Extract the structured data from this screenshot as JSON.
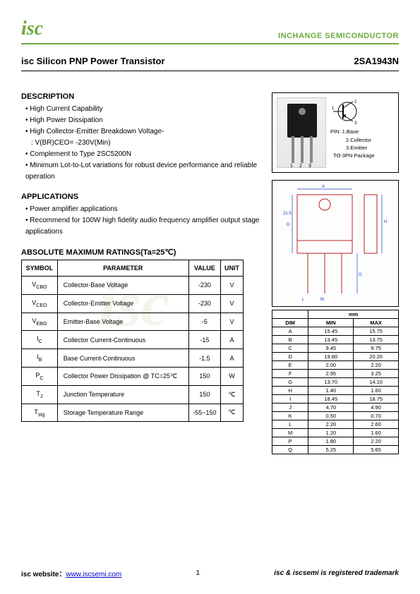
{
  "header": {
    "logo": "isc",
    "brand": "INCHANGE SEMICONDUCTOR",
    "brand_color": "#6daa3e"
  },
  "title": {
    "left": "isc Silicon PNP Power Transistor",
    "right": "2SA1943N"
  },
  "description": {
    "heading": "DESCRIPTION",
    "items": [
      "High Current Capability",
      "High Power Dissipation",
      "High Collector-Emitter Breakdown Voltage-",
      "Complement to Type 2SC5200N",
      "Minimum Lot-to-Lot variations for robust device performance and reliable operation"
    ],
    "breakdown_sub": ": V(BR)CEO= -230V(Min)"
  },
  "applications": {
    "heading": "APPLICATIONS",
    "items": [
      "Power amplifier applications",
      "Recommend for 100W high fidelity audio frequency amplifier output stage applications"
    ]
  },
  "ratings": {
    "heading": "ABSOLUTE MAXIMUM RATINGS(Ta=25℃)",
    "columns": [
      "SYMBOL",
      "PARAMETER",
      "VALUE",
      "UNIT"
    ],
    "rows": [
      {
        "sym": "V",
        "sub": "CBO",
        "param": "Collector-Base Voltage",
        "value": "-230",
        "unit": "V"
      },
      {
        "sym": "V",
        "sub": "CEO",
        "param": "Collector-Emitter Voltage",
        "value": "-230",
        "unit": "V"
      },
      {
        "sym": "V",
        "sub": "EBO",
        "param": "Emitter-Base Voltage",
        "value": "-5",
        "unit": "V"
      },
      {
        "sym": "I",
        "sub": "C",
        "param": "Collector Current-Continuous",
        "value": "-15",
        "unit": "A"
      },
      {
        "sym": "I",
        "sub": "B",
        "param": "Base Current-Continuous",
        "value": "-1.5",
        "unit": "A"
      },
      {
        "sym": "P",
        "sub": "C",
        "param": "Collector Power Dissipation @ TC=25℃",
        "value": "150",
        "unit": "W"
      },
      {
        "sym": "T",
        "sub": "J",
        "param": "Junction Temperature",
        "value": "150",
        "unit": "℃"
      },
      {
        "sym": "T",
        "sub": "stg",
        "param": "Storage Temperature Range",
        "value": "-55~150",
        "unit": "℃"
      }
    ]
  },
  "package": {
    "pins_label": "PIN: 1.Base",
    "pin2": "2.Collector",
    "pin3": "3.Emitter",
    "pkg_name": "TO-3PN Package",
    "pin_numbers": [
      "1",
      "2",
      "3"
    ]
  },
  "dimensions": {
    "header_mm": "mm",
    "columns": [
      "DIM",
      "MIN",
      "MAX"
    ],
    "rows": [
      [
        "A",
        "15.45",
        "15.75"
      ],
      [
        "B",
        "13.45",
        "13.75"
      ],
      [
        "C",
        "9.45",
        "9.75"
      ],
      [
        "D",
        "19.80",
        "20.20"
      ],
      [
        "E",
        "2.00",
        "2.20"
      ],
      [
        "F",
        "2.95",
        "3.25"
      ],
      [
        "G",
        "13.70",
        "14.10"
      ],
      [
        "H",
        "1.40",
        "1.60"
      ],
      [
        "I",
        "18.45",
        "18.75"
      ],
      [
        "J",
        "4.70",
        "4.90"
      ],
      [
        "K",
        "0.50",
        "0.70"
      ],
      [
        "L",
        "2.20",
        "2.60"
      ],
      [
        "M",
        "1.20",
        "1.60"
      ],
      [
        "P",
        "1.80",
        "2.20"
      ],
      [
        "Q",
        "5.25",
        "5.65"
      ]
    ]
  },
  "outline": {
    "body_stroke": "#c02020",
    "dim_stroke": "#1040c0",
    "hatch_color": "#888888"
  },
  "footer": {
    "left_label": "isc website：",
    "url": "www.iscsemi.com",
    "page_num": "1",
    "right": "isc & iscsemi is registered trademark"
  },
  "watermark": "isc"
}
